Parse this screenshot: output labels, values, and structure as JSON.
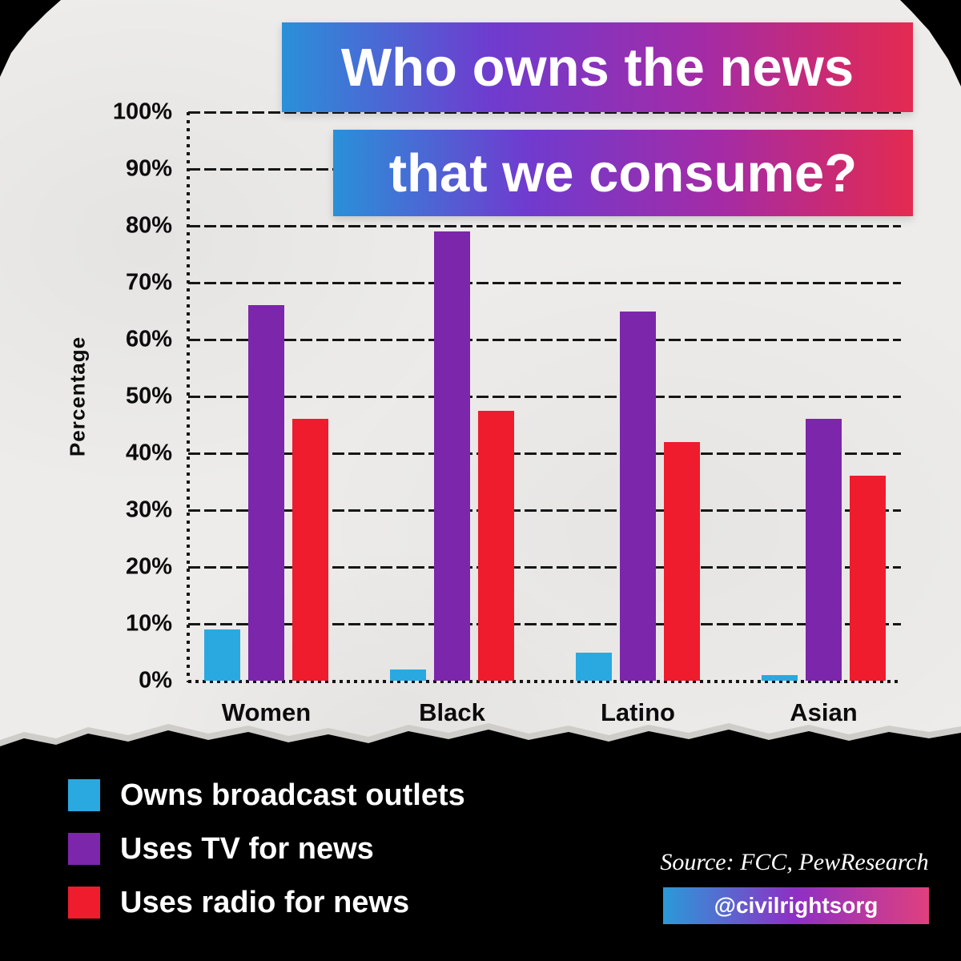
{
  "title": {
    "line1": "Who owns the news",
    "line2": "that we consume?"
  },
  "chart_data": {
    "type": "bar",
    "title": "Who owns the news that we consume?",
    "categories": [
      "Women",
      "Black",
      "Latino",
      "Asian"
    ],
    "series": [
      {
        "name": "Owns broadcast outlets",
        "color": "#29a9e0",
        "values": [
          9,
          2,
          5,
          1
        ]
      },
      {
        "name": "Uses TV for news",
        "color": "#7c26ab",
        "values": [
          66,
          79,
          65,
          46
        ]
      },
      {
        "name": "Uses radio for news",
        "color": "#ee1c2c",
        "values": [
          46,
          47.5,
          42,
          36
        ]
      }
    ],
    "xlabel": "",
    "ylabel": "Percentage",
    "ylim": [
      0,
      100
    ],
    "yticks": [
      "0%",
      "10%",
      "20%",
      "30%",
      "40%",
      "50%",
      "60%",
      "70%",
      "80%",
      "90%",
      "100%"
    ],
    "grid": true,
    "legend_position": "bottom-left"
  },
  "footer": {
    "source": "Source: FCC, PewResearch",
    "handle": "@civilrightsorg"
  },
  "colors": {
    "background": "#edecea",
    "footer_bg": "#000000",
    "grid_color": "#141414",
    "banner_gradient": [
      "#2a90d9",
      "#6f3bcf",
      "#a42ba6",
      "#e42a50"
    ],
    "badge_gradient": [
      "#2a9ad9",
      "#8e2fc4",
      "#e0407e"
    ],
    "bar_blue": "#29a9e0",
    "bar_purple": "#7c26ab",
    "bar_red": "#ee1c2c"
  }
}
